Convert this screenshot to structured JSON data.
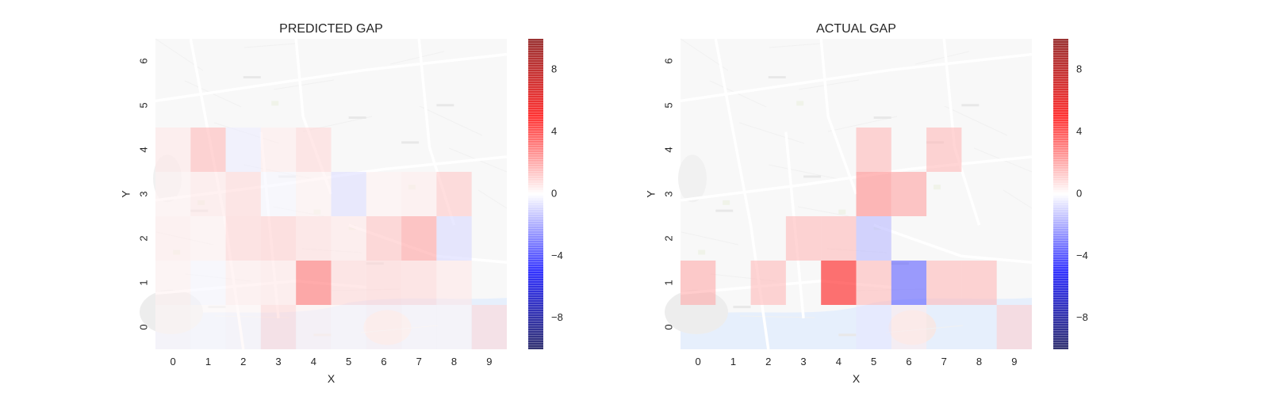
{
  "chart_data": [
    {
      "type": "heatmap",
      "title": "PREDICTED GAP",
      "xlabel": "X",
      "ylabel": "Y",
      "x_ticks": [
        "0",
        "1",
        "2",
        "3",
        "4",
        "5",
        "6",
        "7",
        "8",
        "9"
      ],
      "y_ticks": [
        "0",
        "1",
        "2",
        "3",
        "4",
        "5",
        "6"
      ],
      "grid": false,
      "background": "street-map",
      "colormap": "seismic",
      "vmin": -10,
      "vmax": 10,
      "colorbar_ticks": [
        "8",
        "4",
        "0",
        "−4",
        "−8"
      ],
      "colorbar_values": [
        8,
        4,
        0,
        -4,
        -8
      ],
      "cells": [
        {
          "x": 0,
          "y": 1,
          "value": 0.3
        },
        {
          "x": 1,
          "y": 1,
          "value": -0.2
        },
        {
          "x": 2,
          "y": 1,
          "value": 0.4
        },
        {
          "x": 3,
          "y": 1,
          "value": 0.5
        },
        {
          "x": 4,
          "y": 1,
          "value": 3.0
        },
        {
          "x": 5,
          "y": 1,
          "value": 0.8
        },
        {
          "x": 6,
          "y": 1,
          "value": 0.9
        },
        {
          "x": 7,
          "y": 1,
          "value": 0.8
        },
        {
          "x": 8,
          "y": 1,
          "value": 0.5
        },
        {
          "x": 0,
          "y": 2,
          "value": 0.4
        },
        {
          "x": 1,
          "y": 2,
          "value": 0.3
        },
        {
          "x": 2,
          "y": 2,
          "value": 0.9
        },
        {
          "x": 3,
          "y": 2,
          "value": 1.0
        },
        {
          "x": 4,
          "y": 2,
          "value": 0.7
        },
        {
          "x": 5,
          "y": 2,
          "value": 0.5
        },
        {
          "x": 6,
          "y": 2,
          "value": 1.3
        },
        {
          "x": 7,
          "y": 2,
          "value": 2.0
        },
        {
          "x": 8,
          "y": 2,
          "value": -0.8
        },
        {
          "x": 0,
          "y": 3,
          "value": 0.3
        },
        {
          "x": 1,
          "y": 3,
          "value": 0.5
        },
        {
          "x": 2,
          "y": 3,
          "value": 0.8
        },
        {
          "x": 3,
          "y": 3,
          "value": -0.2
        },
        {
          "x": 4,
          "y": 3,
          "value": 0.3
        },
        {
          "x": 5,
          "y": 3,
          "value": -0.7
        },
        {
          "x": 6,
          "y": 3,
          "value": 0.3
        },
        {
          "x": 7,
          "y": 3,
          "value": 0.4
        },
        {
          "x": 8,
          "y": 3,
          "value": 1.2
        },
        {
          "x": 0,
          "y": 4,
          "value": 0.5
        },
        {
          "x": 1,
          "y": 4,
          "value": 1.5
        },
        {
          "x": 2,
          "y": 4,
          "value": -0.4
        },
        {
          "x": 3,
          "y": 4,
          "value": 0.4
        },
        {
          "x": 4,
          "y": 4,
          "value": 0.8
        },
        {
          "x": 0,
          "y": 0,
          "value": 0.2
        },
        {
          "x": 1,
          "y": 0,
          "value": 0.1
        },
        {
          "x": 2,
          "y": 0,
          "value": 0.2
        },
        {
          "x": 3,
          "y": 0,
          "value": 0.8
        },
        {
          "x": 4,
          "y": 0,
          "value": 0.3
        },
        {
          "x": 5,
          "y": 0,
          "value": 0.2
        },
        {
          "x": 6,
          "y": 0,
          "value": 0.3
        },
        {
          "x": 7,
          "y": 0,
          "value": 0.2
        },
        {
          "x": 8,
          "y": 0,
          "value": 0.2
        },
        {
          "x": 9,
          "y": 0,
          "value": 0.8
        }
      ]
    },
    {
      "type": "heatmap",
      "title": "ACTUAL GAP",
      "xlabel": "X",
      "ylabel": "Y",
      "x_ticks": [
        "0",
        "1",
        "2",
        "3",
        "4",
        "5",
        "6",
        "7",
        "8",
        "9"
      ],
      "y_ticks": [
        "0",
        "1",
        "2",
        "3",
        "4",
        "5",
        "6"
      ],
      "grid": false,
      "background": "street-map",
      "colormap": "seismic",
      "vmin": -10,
      "vmax": 10,
      "colorbar_ticks": [
        "8",
        "4",
        "0",
        "−4",
        "−8"
      ],
      "colorbar_values": [
        8,
        4,
        0,
        -4,
        -8
      ],
      "cells": [
        {
          "x": 0,
          "y": 1,
          "value": 1.8
        },
        {
          "x": 2,
          "y": 1,
          "value": 1.5
        },
        {
          "x": 4,
          "y": 1,
          "value": 5.0
        },
        {
          "x": 5,
          "y": 1,
          "value": 1.5
        },
        {
          "x": 6,
          "y": 1,
          "value": -3.5
        },
        {
          "x": 7,
          "y": 1,
          "value": 1.5
        },
        {
          "x": 8,
          "y": 1,
          "value": 1.5
        },
        {
          "x": 3,
          "y": 2,
          "value": 1.5
        },
        {
          "x": 4,
          "y": 2,
          "value": 1.5
        },
        {
          "x": 5,
          "y": 2,
          "value": -1.5
        },
        {
          "x": 5,
          "y": 3,
          "value": 2.5
        },
        {
          "x": 6,
          "y": 3,
          "value": 2.0
        },
        {
          "x": 5,
          "y": 4,
          "value": 1.5
        },
        {
          "x": 7,
          "y": 4,
          "value": 1.5
        },
        {
          "x": 5,
          "y": 0,
          "value": -0.5
        },
        {
          "x": 6,
          "y": 0,
          "value": 0.4
        },
        {
          "x": 9,
          "y": 0,
          "value": 1.0
        }
      ]
    }
  ]
}
